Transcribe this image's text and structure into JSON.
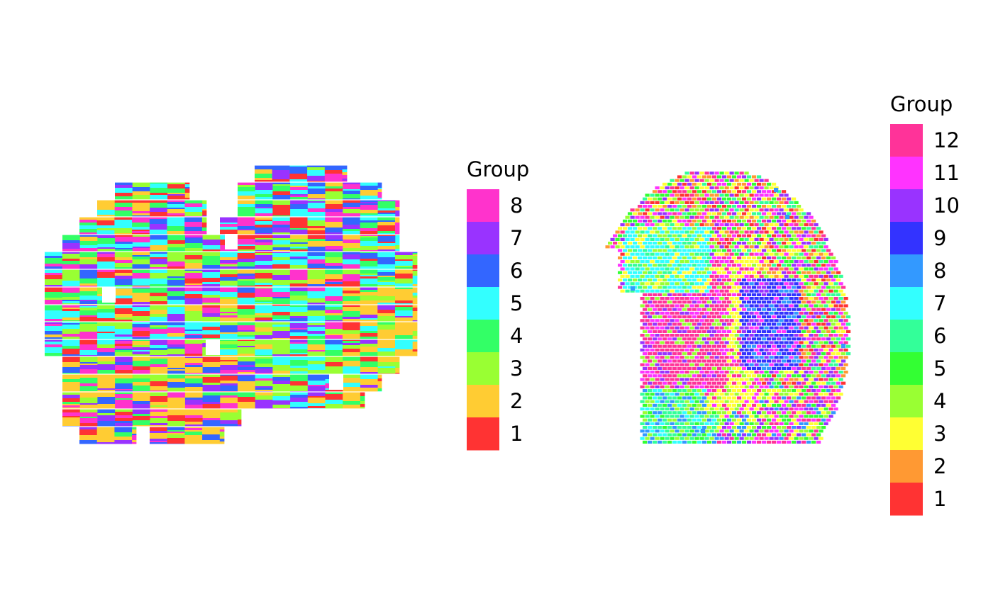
{
  "chart_data": [
    {
      "type": "heatmap",
      "title": "",
      "xlabel": "",
      "ylabel": "",
      "grid": false,
      "legend_placement": "right",
      "legend": {
        "title": "Group",
        "entries": [
          {
            "label": "8",
            "color": "#FF33CC"
          },
          {
            "label": "7",
            "color": "#9933FF"
          },
          {
            "label": "6",
            "color": "#3366FF"
          },
          {
            "label": "5",
            "color": "#33FFFF"
          },
          {
            "label": "4",
            "color": "#33FF66"
          },
          {
            "label": "3",
            "color": "#99FF33"
          },
          {
            "label": "2",
            "color": "#FFCC33"
          },
          {
            "label": "1",
            "color": "#FF3333"
          }
        ]
      }
    },
    {
      "type": "heatmap",
      "title": "",
      "xlabel": "",
      "ylabel": "",
      "grid": false,
      "legend_placement": "right",
      "legend": {
        "title": "Group",
        "entries": [
          {
            "label": "12",
            "color": "#FF3399"
          },
          {
            "label": "11",
            "color": "#FF33FF"
          },
          {
            "label": "10",
            "color": "#9933FF"
          },
          {
            "label": "9",
            "color": "#3333FF"
          },
          {
            "label": "8",
            "color": "#3399FF"
          },
          {
            "label": "7",
            "color": "#33FFFF"
          },
          {
            "label": "6",
            "color": "#33FF99"
          },
          {
            "label": "5",
            "color": "#33FF33"
          },
          {
            "label": "4",
            "color": "#99FF33"
          },
          {
            "label": "3",
            "color": "#FFFF33"
          },
          {
            "label": "2",
            "color": "#FF9933"
          },
          {
            "label": "1",
            "color": "#FF3333"
          }
        ]
      }
    }
  ]
}
